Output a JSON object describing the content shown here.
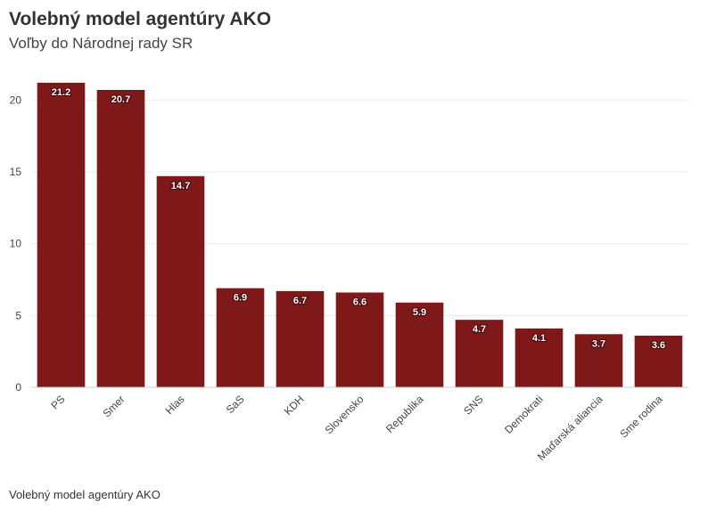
{
  "header": {
    "title": "Volebný model agentúry AKO",
    "subtitle": "Voľby do Národnej rady SR"
  },
  "footer": {
    "source": "Volebný model agentúry AKO"
  },
  "colors": {
    "bar": "#7f1818",
    "grid": "#ececec",
    "axis": "#cccccc"
  },
  "chart_data": {
    "type": "bar",
    "categories": [
      "PS",
      "Smer",
      "Hlas",
      "SaS",
      "KDH",
      "Slovensko",
      "Republika",
      "SNS",
      "Demokrati",
      "Maďarská aliancia",
      "Sme rodina"
    ],
    "values": [
      21.2,
      20.7,
      14.7,
      6.9,
      6.7,
      6.6,
      5.9,
      4.7,
      4.1,
      3.7,
      3.6
    ],
    "data_labels": [
      "21.2",
      "20.7",
      "14.7",
      "6.9",
      "6.7",
      "6.6",
      "5.9",
      "4.7",
      "4.1",
      "3.7",
      "3.6"
    ],
    "yticks": [
      0,
      5,
      10,
      15,
      20
    ],
    "ylim": [
      0,
      22
    ],
    "grid": true,
    "xlabel": "",
    "ylabel": ""
  }
}
